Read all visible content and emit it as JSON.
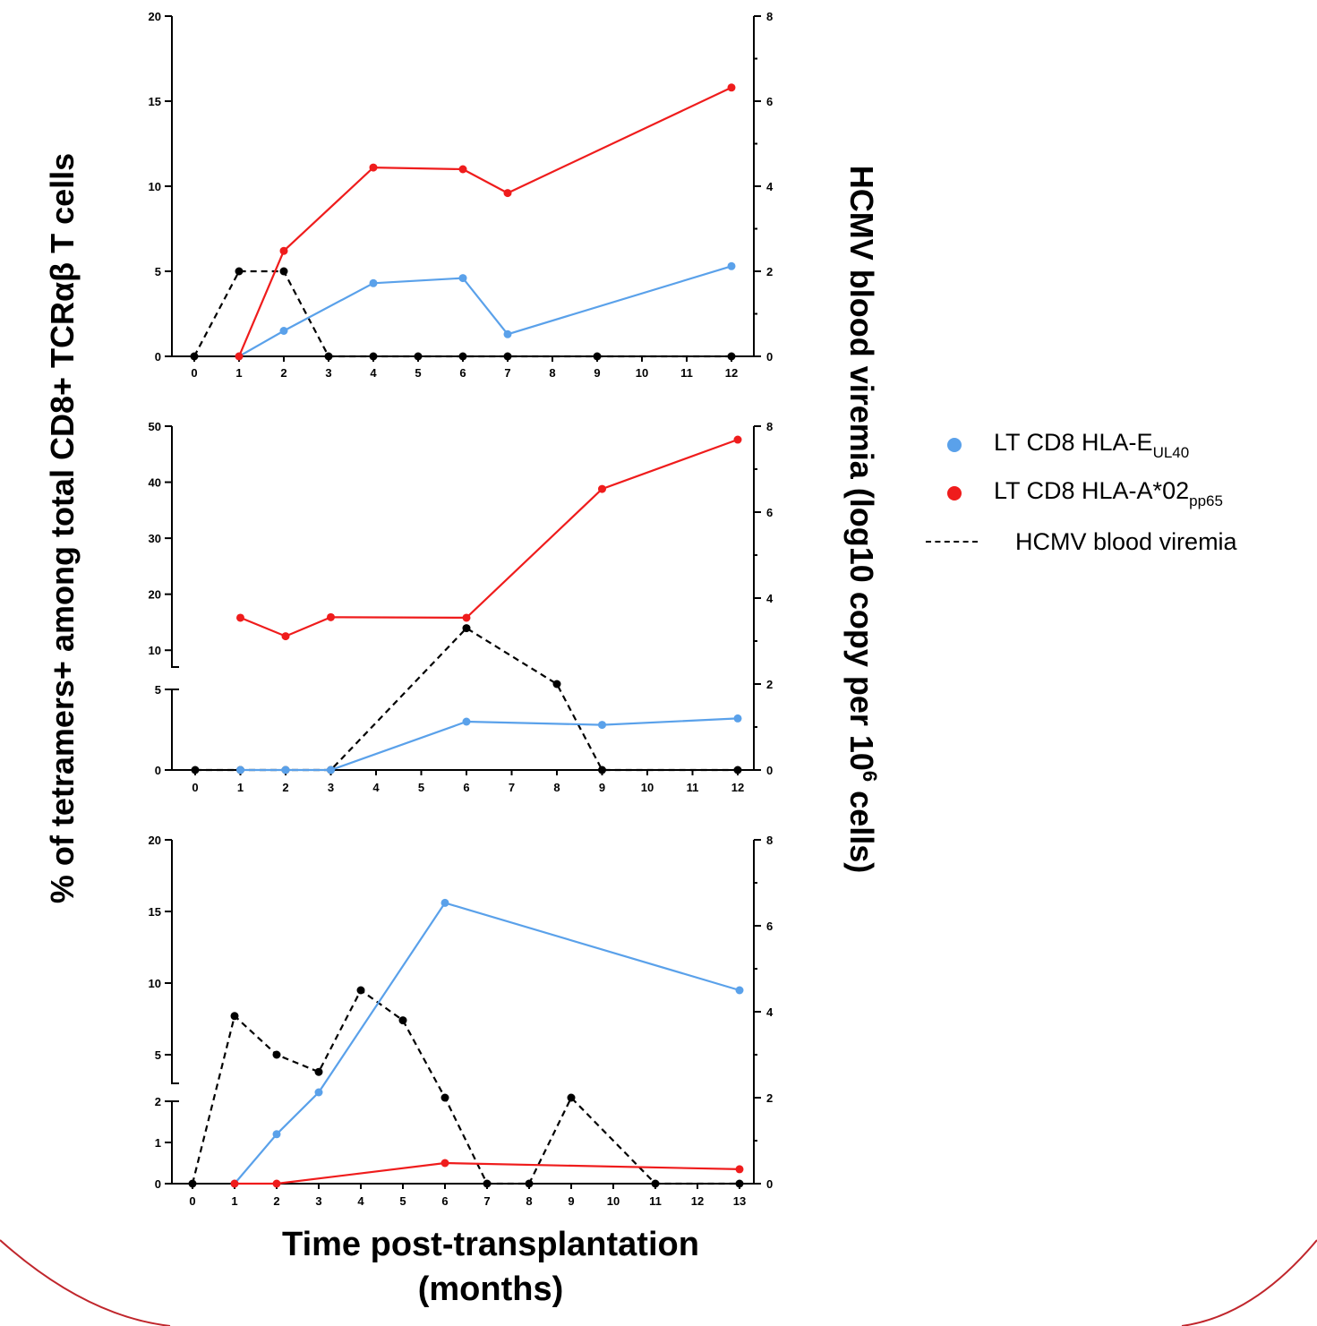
{
  "labels": {
    "y_left": "% of tetramers+ among total CD8+ TCRαβ T cells",
    "y_right_main": "HCMV blood viremia (log10 copy per 10",
    "y_right_sup": "6",
    "y_right_tail": " cells)",
    "x_line1": "Time post-transplantation",
    "x_line2": "(months)"
  },
  "legend": [
    {
      "marker": "dot",
      "color": "#5aa1ea",
      "text": "LT CD8 HLA-E",
      "sub": "UL40"
    },
    {
      "marker": "dot",
      "color": "#ef1c1c",
      "text": "LT CD8 HLA-A*02",
      "sub": "pp65"
    },
    {
      "marker": "dash",
      "color": "#000000",
      "text": "HCMV blood viremia",
      "sub": ""
    }
  ],
  "colors": {
    "blue": "#5aa1ea",
    "red": "#ef1c1c",
    "black": "#000000",
    "arc": "#c0262c"
  },
  "chart_data": [
    {
      "type": "line",
      "x_ticks": [
        0,
        1,
        2,
        3,
        4,
        5,
        6,
        7,
        8,
        9,
        10,
        11,
        12
      ],
      "y_left_ticks": [
        0,
        5,
        10,
        15,
        20
      ],
      "y_left_lim": [
        0,
        20
      ],
      "y_right_ticks": [
        0,
        2,
        4,
        6,
        8
      ],
      "y_right_lim": [
        0,
        8
      ],
      "series": [
        {
          "name": "LT CD8 HLA-EUL40",
          "axis": "left",
          "style": "solid",
          "color": "#5aa1ea",
          "x": [
            1,
            2,
            4,
            6,
            7,
            12
          ],
          "y": [
            0,
            1.5,
            4.3,
            4.6,
            1.3,
            5.3
          ]
        },
        {
          "name": "LT CD8 HLA-A*02pp65",
          "axis": "left",
          "style": "solid",
          "color": "#ef1c1c",
          "x": [
            1,
            2,
            4,
            6,
            7,
            12
          ],
          "y": [
            0,
            6.2,
            11.1,
            11.0,
            9.6,
            15.8
          ]
        },
        {
          "name": "HCMV blood viremia",
          "axis": "right",
          "style": "dashed",
          "color": "#000000",
          "x": [
            0,
            1,
            2,
            3,
            4,
            5,
            6,
            7,
            9,
            12
          ],
          "y": [
            0,
            2,
            2,
            0,
            0,
            0,
            0,
            0,
            0,
            0
          ]
        }
      ]
    },
    {
      "type": "line",
      "x_ticks": [
        0,
        1,
        2,
        3,
        4,
        5,
        6,
        7,
        8,
        9,
        10,
        11,
        12
      ],
      "y_left_ticks": [
        0,
        5,
        10,
        20,
        30,
        40,
        50
      ],
      "y_left_break": {
        "lower": [
          0,
          5
        ],
        "upper": [
          7,
          50
        ]
      },
      "y_right_ticks": [
        0,
        2,
        4,
        6,
        8
      ],
      "y_right_lim": [
        0,
        8
      ],
      "series": [
        {
          "name": "LT CD8 HLA-EUL40",
          "axis": "left",
          "style": "solid",
          "color": "#5aa1ea",
          "x": [
            1,
            2,
            3,
            6,
            9,
            12
          ],
          "y": [
            0,
            0,
            0,
            3.0,
            2.8,
            3.2
          ]
        },
        {
          "name": "LT CD8 HLA-A*02pp65",
          "axis": "left",
          "style": "solid",
          "color": "#ef1c1c",
          "x": [
            1,
            2,
            3,
            6,
            9,
            12
          ],
          "y": [
            15.8,
            12.5,
            15.9,
            15.8,
            38.8,
            47.6
          ]
        },
        {
          "name": "HCMV blood viremia",
          "axis": "right",
          "style": "dashed",
          "color": "#000000",
          "x": [
            0,
            1,
            2,
            3,
            6,
            8,
            9,
            12
          ],
          "y": [
            0,
            0,
            0,
            0,
            3.3,
            2.0,
            0,
            0
          ]
        }
      ]
    },
    {
      "type": "line",
      "x_ticks": [
        0,
        1,
        2,
        3,
        4,
        5,
        6,
        7,
        8,
        9,
        10,
        11,
        12,
        13
      ],
      "y_left_ticks": [
        0,
        1,
        2,
        5,
        10,
        15,
        20
      ],
      "y_left_break": {
        "lower": [
          0,
          2
        ],
        "upper": [
          3,
          20
        ]
      },
      "y_right_ticks": [
        0,
        2,
        4,
        6,
        8
      ],
      "y_right_lim": [
        0,
        8
      ],
      "series": [
        {
          "name": "LT CD8 HLA-EUL40",
          "axis": "left",
          "style": "solid",
          "color": "#5aa1ea",
          "x": [
            1,
            2,
            3,
            6,
            13
          ],
          "y": [
            0,
            1.2,
            2.5,
            15.6,
            9.5
          ]
        },
        {
          "name": "LT CD8 HLA-A*02pp65",
          "axis": "left",
          "style": "solid",
          "color": "#ef1c1c",
          "x": [
            1,
            2,
            6,
            13
          ],
          "y": [
            0,
            0,
            0.5,
            0.35
          ]
        },
        {
          "name": "HCMV blood viremia",
          "axis": "right",
          "style": "dashed",
          "color": "#000000",
          "x": [
            0,
            1,
            2,
            3,
            4,
            5,
            6,
            7,
            8,
            9,
            11,
            13
          ],
          "y": [
            0,
            3.9,
            3.0,
            2.6,
            4.5,
            3.8,
            2.0,
            0,
            0,
            2.0,
            0,
            0
          ]
        }
      ]
    }
  ]
}
